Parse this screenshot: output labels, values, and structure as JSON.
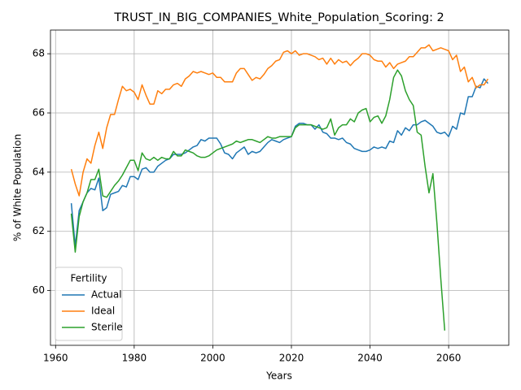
{
  "chart_data": {
    "type": "line",
    "title": "TRUST_IN_BIG_COMPANIES_White_Population_Scoring: 2",
    "xlabel": "Years",
    "ylabel": "% of White Population",
    "legend_title": "Fertility",
    "legend": "lower left",
    "grid": true,
    "xlim": [
      1958.7,
      2075.3
    ],
    "xticks": [
      1960,
      1980,
      2000,
      2020,
      2040,
      2060
    ],
    "ylim": [
      58.15,
      68.8
    ],
    "yticks": [
      60,
      62,
      64,
      66,
      68
    ],
    "x": [
      1964,
      1965,
      1966,
      1967,
      1968,
      1969,
      1970,
      1971,
      1972,
      1973,
      1974,
      1975,
      1976,
      1977,
      1978,
      1979,
      1980,
      1981,
      1982,
      1983,
      1984,
      1985,
      1986,
      1987,
      1988,
      1989,
      1990,
      1991,
      1992,
      1993,
      1994,
      1995,
      1996,
      1997,
      1998,
      1999,
      2000,
      2001,
      2002,
      2003,
      2004,
      2005,
      2006,
      2007,
      2008,
      2009,
      2010,
      2011,
      2012,
      2013,
      2014,
      2015,
      2016,
      2017,
      2018,
      2019,
      2020,
      2021,
      2022,
      2023,
      2024,
      2025,
      2026,
      2027,
      2028,
      2029,
      2030,
      2031,
      2032,
      2033,
      2034,
      2035,
      2036,
      2037,
      2038,
      2039,
      2040,
      2041,
      2042,
      2043,
      2044,
      2045,
      2046,
      2047,
      2048,
      2049,
      2050,
      2051,
      2052,
      2053,
      2054,
      2055,
      2056,
      2057,
      2058,
      2059,
      2060,
      2061,
      2062,
      2063,
      2064,
      2065,
      2066,
      2067,
      2068,
      2069,
      2070
    ],
    "series": [
      {
        "name": "Actual",
        "color": "#1f77b4",
        "values": [
          62.95,
          61.5,
          62.7,
          63.0,
          63.3,
          63.45,
          63.4,
          63.8,
          62.7,
          62.8,
          63.25,
          63.3,
          63.35,
          63.55,
          63.5,
          63.85,
          63.85,
          63.75,
          64.1,
          64.15,
          64.0,
          64.0,
          64.2,
          64.3,
          64.4,
          64.45,
          64.6,
          64.6,
          64.6,
          64.65,
          64.75,
          64.85,
          64.9,
          65.1,
          65.05,
          65.15,
          65.15,
          65.15,
          64.95,
          64.65,
          64.6,
          64.45,
          64.65,
          64.75,
          64.85,
          64.6,
          64.7,
          64.65,
          64.7,
          64.85,
          65.0,
          65.1,
          65.05,
          65.0,
          65.1,
          65.15,
          65.2,
          65.55,
          65.65,
          65.65,
          65.6,
          65.6,
          65.45,
          65.6,
          65.35,
          65.3,
          65.15,
          65.15,
          65.1,
          65.15,
          65.0,
          64.95,
          64.8,
          64.75,
          64.7,
          64.7,
          64.75,
          64.85,
          64.8,
          64.85,
          64.8,
          65.05,
          65.0,
          65.4,
          65.25,
          65.5,
          65.4,
          65.6,
          65.6,
          65.7,
          65.75,
          65.65,
          65.55,
          65.35,
          65.3,
          65.35,
          65.2,
          65.55,
          65.45,
          66.0,
          65.95,
          66.55,
          66.55,
          66.9,
          66.85,
          67.15,
          67.0
        ]
      },
      {
        "name": "Ideal",
        "color": "#ff7f0e",
        "values": [
          64.1,
          63.6,
          63.2,
          64.0,
          64.45,
          64.3,
          64.9,
          65.35,
          64.8,
          65.5,
          65.95,
          65.95,
          66.45,
          66.9,
          66.75,
          66.8,
          66.7,
          66.45,
          66.95,
          66.6,
          66.3,
          66.3,
          66.75,
          66.65,
          66.8,
          66.8,
          66.95,
          67.0,
          66.9,
          67.15,
          67.25,
          67.4,
          67.35,
          67.4,
          67.35,
          67.3,
          67.35,
          67.2,
          67.2,
          67.05,
          67.05,
          67.05,
          67.35,
          67.5,
          67.5,
          67.3,
          67.1,
          67.2,
          67.15,
          67.3,
          67.5,
          67.6,
          67.75,
          67.8,
          68.05,
          68.1,
          68.0,
          68.1,
          67.95,
          68.0,
          68.0,
          67.95,
          67.9,
          67.8,
          67.85,
          67.65,
          67.85,
          67.65,
          67.8,
          67.7,
          67.75,
          67.6,
          67.75,
          67.85,
          68.0,
          68.0,
          67.95,
          67.8,
          67.75,
          67.75,
          67.55,
          67.7,
          67.5,
          67.65,
          67.7,
          67.75,
          67.9,
          67.9,
          68.05,
          68.2,
          68.2,
          68.3,
          68.1,
          68.15,
          68.2,
          68.15,
          68.1,
          67.8,
          67.95,
          67.4,
          67.55,
          67.05,
          67.2,
          66.85,
          66.95,
          66.95,
          67.15
        ]
      },
      {
        "name": "Sterile",
        "color": "#2ca02c",
        "values": [
          62.6,
          61.3,
          62.5,
          63.0,
          63.3,
          63.75,
          63.75,
          64.1,
          63.2,
          63.15,
          63.35,
          63.55,
          63.7,
          63.9,
          64.15,
          64.4,
          64.4,
          64.05,
          64.65,
          64.45,
          64.4,
          64.5,
          64.4,
          64.5,
          64.45,
          64.45,
          64.7,
          64.55,
          64.55,
          64.75,
          64.7,
          64.65,
          64.55,
          64.5,
          64.5,
          64.55,
          64.65,
          64.75,
          64.8,
          64.85,
          64.9,
          64.95,
          65.05,
          65.0,
          65.05,
          65.1,
          65.1,
          65.05,
          65.0,
          65.1,
          65.2,
          65.15,
          65.15,
          65.2,
          65.2,
          65.2,
          65.2,
          65.5,
          65.6,
          65.6,
          65.6,
          65.6,
          65.55,
          65.5,
          65.45,
          65.5,
          65.8,
          65.25,
          65.5,
          65.6,
          65.6,
          65.8,
          65.7,
          66.0,
          66.1,
          66.15,
          65.7,
          65.85,
          65.9,
          65.65,
          65.9,
          66.45,
          67.2,
          67.45,
          67.25,
          66.75,
          66.45,
          66.25,
          65.35,
          65.25,
          64.2,
          63.3,
          63.95,
          62.3,
          60.4,
          58.65,
          null,
          null,
          null,
          null,
          null,
          null,
          null,
          null,
          null,
          null,
          null
        ]
      }
    ]
  }
}
